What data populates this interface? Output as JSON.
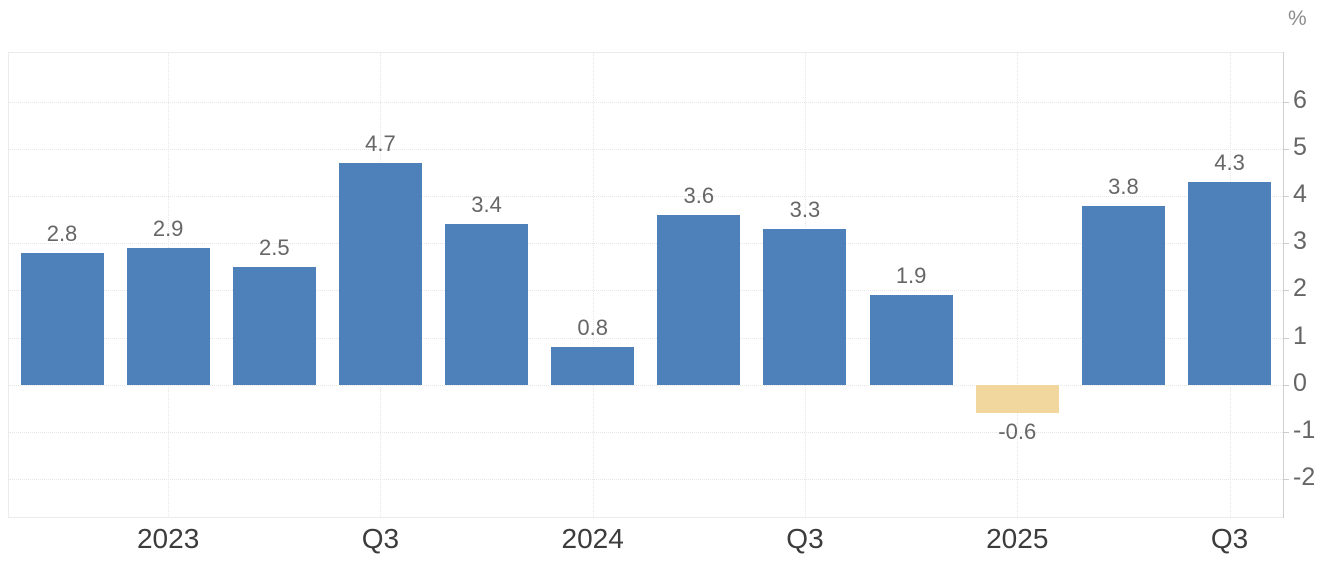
{
  "chart_data": {
    "type": "bar",
    "title": "",
    "y_axis_unit": "%",
    "categories": [
      "",
      "2023",
      "",
      "Q3",
      "",
      "2024",
      "",
      "Q3",
      "",
      "2025",
      "",
      "Q3"
    ],
    "values": [
      2.8,
      2.9,
      2.5,
      4.7,
      3.4,
      0.8,
      3.6,
      3.3,
      1.9,
      -0.6,
      3.8,
      4.3
    ],
    "bar_value_labels": [
      "2.8",
      "2.9",
      "2.5",
      "4.7",
      "3.4",
      "0.8",
      "3.6",
      "3.3",
      "1.9",
      "-0.6",
      "3.8",
      "4.3"
    ],
    "x_tick_labels": [
      {
        "bar_index": 1,
        "label": "2023"
      },
      {
        "bar_index": 3,
        "label": "Q3"
      },
      {
        "bar_index": 5,
        "label": "2024"
      },
      {
        "bar_index": 7,
        "label": "Q3"
      },
      {
        "bar_index": 9,
        "label": "2025"
      },
      {
        "bar_index": 11,
        "label": "Q3"
      }
    ],
    "y_ticks": [
      6,
      5,
      4,
      3,
      2,
      1,
      0,
      -1,
      -2
    ],
    "ylim": [
      -2.83,
      7.06
    ],
    "grid": true,
    "legend_position": "none",
    "y_axis_side": "right",
    "colors": {
      "bar_positive": "#4e80ba",
      "bar_negative": "#f1d79e",
      "bar_value_label": "#666666",
      "y_axis_text": "#666666",
      "x_axis_text": "#3c3c3c",
      "unit_text": "#8c8c8c",
      "gridline": "#e6e6e6",
      "plot_border": "#ebebeb",
      "axis_line": "#d0d0d0",
      "tick": "#cccccc",
      "background": "#ffffff"
    }
  }
}
